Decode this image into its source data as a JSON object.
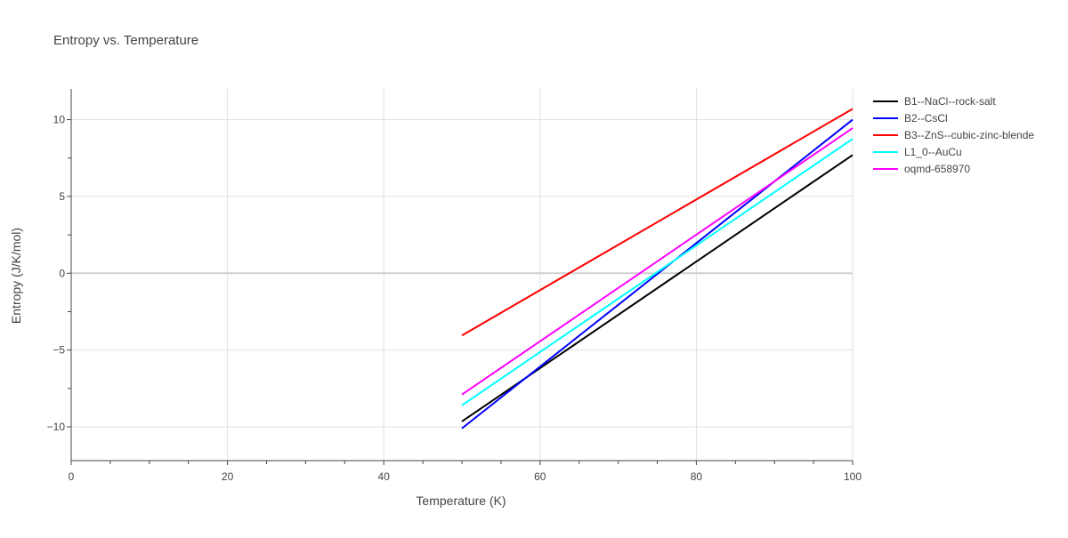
{
  "chart_data": {
    "type": "line",
    "title": "Entropy vs. Temperature",
    "xlabel": "Temperature (K)",
    "ylabel": "Entropy (J/K/mol)",
    "xlim": [
      0,
      100
    ],
    "ylim": [
      -12.2,
      12
    ],
    "xticks": [
      0,
      20,
      40,
      60,
      80,
      100
    ],
    "xtick_labels": [
      "0",
      "20",
      "40",
      "60",
      "80",
      "100"
    ],
    "yticks": [
      -10,
      -5,
      0,
      5,
      10
    ],
    "ytick_labels": [
      "−10",
      "−5",
      "0",
      "5",
      "10"
    ],
    "grid": true,
    "legend_position": "top-right",
    "series": [
      {
        "name": "B1--NaCl--rock-salt",
        "color": "#000000",
        "x": [
          50,
          100
        ],
        "y": [
          -9.65,
          7.7
        ]
      },
      {
        "name": "B2--CsCl",
        "color": "#0000ff",
        "x": [
          50,
          100
        ],
        "y": [
          -10.1,
          10.0
        ]
      },
      {
        "name": "B3--ZnS--cubic-zinc-blende",
        "color": "#ff0000",
        "x": [
          50,
          100
        ],
        "y": [
          -4.05,
          10.7
        ]
      },
      {
        "name": "L1_0--AuCu",
        "color": "#00ffff",
        "x": [
          50,
          100
        ],
        "y": [
          -8.6,
          8.75
        ]
      },
      {
        "name": "oqmd-658970",
        "color": "#ff00ff",
        "x": [
          50,
          100
        ],
        "y": [
          -7.9,
          9.45
        ]
      }
    ]
  }
}
